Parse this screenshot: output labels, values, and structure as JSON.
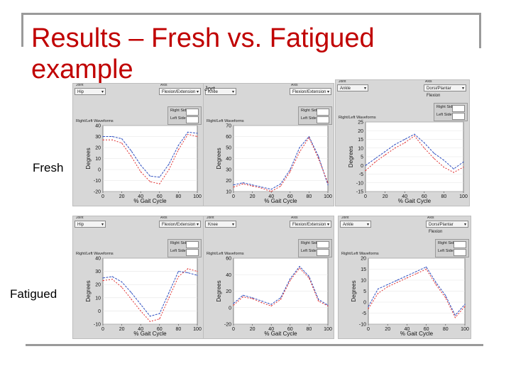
{
  "slide": {
    "title": "Results – Fresh vs. Fatigued example",
    "rows": [
      "Fresh",
      "Fatigued"
    ],
    "stray_label": "Jort"
  },
  "colors": {
    "title": "#c00000",
    "left_series": "#e03030",
    "right_series": "#3050c0",
    "panel_bg": "#d7d7d7",
    "plot_bg": "#ffffff"
  },
  "panels": [
    {
      "controls": [
        {
          "label": "Joint",
          "value": "Hip"
        },
        {
          "label": "Axis",
          "value": "Flexion/Extension"
        }
      ],
      "legend": [
        "Right Side",
        "Left Side"
      ],
      "plot_label": "Right/Left Waveforms",
      "xlabel": "% Gait Cycle",
      "ylabel": "Degrees",
      "xticks": [
        "0",
        "20",
        "40",
        "60",
        "80",
        "100"
      ],
      "yticks": [
        "40",
        "30",
        "20",
        "10",
        "0",
        "-10",
        "-20"
      ],
      "ylim": [
        -20,
        40
      ],
      "chart_data": {
        "type": "line",
        "x": [
          0,
          10,
          20,
          30,
          40,
          50,
          60,
          70,
          80,
          90,
          100
        ],
        "series": [
          {
            "name": "Right Side",
            "values": [
              30,
              30,
              28,
              17,
              4,
              -6,
              -7,
              5,
              22,
              34,
              33
            ]
          },
          {
            "name": "Left Side",
            "values": [
              27,
              27,
              24,
              12,
              -2,
              -11,
              -13,
              0,
              18,
              32,
              30
            ]
          }
        ]
      }
    },
    {
      "controls": [
        {
          "label": "",
          "value": "Knee"
        },
        {
          "label": "Axis",
          "value": "Flexion/Extension"
        }
      ],
      "legend": [
        "Right Side",
        "Left Side"
      ],
      "plot_label": "Right/Left Waveforms",
      "xlabel": "% Gait Cycle",
      "ylabel": "Degrees",
      "xticks": [
        "0",
        "20",
        "40",
        "60",
        "80",
        "100"
      ],
      "yticks": [
        "70",
        "60",
        "50",
        "40",
        "30",
        "20",
        "10"
      ],
      "ylim": [
        10,
        70
      ],
      "chart_data": {
        "type": "line",
        "x": [
          0,
          10,
          20,
          30,
          40,
          50,
          60,
          70,
          80,
          90,
          100
        ],
        "series": [
          {
            "name": "Right Side",
            "values": [
              16,
              18,
              16,
              14,
              12,
              17,
              30,
              50,
              60,
              42,
              16
            ]
          },
          {
            "name": "Left Side",
            "values": [
              14,
              17,
              15,
              13,
              10,
              15,
              28,
              46,
              59,
              40,
              18
            ]
          }
        ]
      }
    },
    {
      "controls": [
        {
          "label": "Joint",
          "value": "Ankle"
        },
        {
          "label": "Axis",
          "value": "Dorsi/Plantar Flexion"
        }
      ],
      "legend": [
        "Right Side",
        "Left Side"
      ],
      "plot_label": "Right/Left Waveforms",
      "xlabel": "% Gait Cycle",
      "ylabel": "Degrees",
      "xticks": [
        "0",
        "20",
        "40",
        "60",
        "80",
        "100"
      ],
      "yticks": [
        "25",
        "20",
        "15",
        "10",
        "5",
        "0",
        "-5",
        "-10",
        "-15"
      ],
      "ylim": [
        -15,
        25
      ],
      "chart_data": {
        "type": "line",
        "x": [
          0,
          10,
          20,
          30,
          40,
          50,
          60,
          70,
          80,
          90,
          100
        ],
        "series": [
          {
            "name": "Right Side",
            "values": [
              0,
              4,
              8,
              12,
              15,
              18,
              13,
              7,
              3,
              -2,
              2
            ]
          },
          {
            "name": "Left Side",
            "values": [
              -3,
              2,
              6,
              10,
              13,
              17,
              10,
              4,
              -1,
              -4,
              -1
            ]
          }
        ]
      }
    },
    {
      "controls": [
        {
          "label": "Joint",
          "value": "Hip"
        },
        {
          "label": "Axis",
          "value": "Flexion/Extension"
        }
      ],
      "legend": [
        "Right Side",
        "Left Side"
      ],
      "plot_label": "Right/Left Waveforms",
      "xlabel": "% Gait Cycle",
      "ylabel": "Degrees",
      "xticks": [
        "0",
        "20",
        "40",
        "60",
        "80",
        "100"
      ],
      "yticks": [
        "40",
        "30",
        "20",
        "10",
        "0",
        "-10"
      ],
      "ylim": [
        -10,
        40
      ],
      "chart_data": {
        "type": "line",
        "x": [
          0,
          10,
          20,
          30,
          40,
          50,
          60,
          70,
          80,
          90,
          100
        ],
        "series": [
          {
            "name": "Right Side",
            "values": [
              25,
              26,
              22,
              14,
              5,
              -4,
              -2,
              14,
              30,
              29,
              27
            ]
          },
          {
            "name": "Left Side",
            "values": [
              23,
              24,
              18,
              9,
              0,
              -8,
              -6,
              10,
              26,
              32,
              30
            ]
          }
        ]
      }
    },
    {
      "controls": [
        {
          "label": "Joint",
          "value": "Knee"
        },
        {
          "label": "Axis",
          "value": "Flexion/Extension"
        }
      ],
      "legend": [
        "Right Side",
        "Left Side"
      ],
      "plot_label": "Right/Left Waveforms",
      "xlabel": "% Gait Cycle",
      "ylabel": "Degrees",
      "xticks": [
        "0",
        "20",
        "40",
        "60",
        "80",
        "100"
      ],
      "yticks": [
        "60",
        "40",
        "20",
        "0",
        "-20"
      ],
      "ylim": [
        -20,
        60
      ],
      "chart_data": {
        "type": "line",
        "x": [
          0,
          10,
          20,
          30,
          40,
          50,
          60,
          70,
          80,
          90,
          100
        ],
        "series": [
          {
            "name": "Right Side",
            "values": [
              5,
              15,
              12,
              8,
              4,
              12,
              35,
              50,
              38,
              10,
              3
            ]
          },
          {
            "name": "Left Side",
            "values": [
              3,
              13,
              11,
              6,
              2,
              10,
              33,
              48,
              36,
              8,
              2
            ]
          }
        ]
      }
    },
    {
      "controls": [
        {
          "label": "Joint",
          "value": "Ankle"
        },
        {
          "label": "Axis",
          "value": "Dorsi/Plantar Flexion"
        }
      ],
      "legend": [
        "Right Side",
        "Left Side"
      ],
      "plot_label": "Right/Left Waveforms",
      "xlabel": "% Gait Cycle",
      "ylabel": "Degrees",
      "xticks": [
        "0",
        "20",
        "40",
        "60",
        "80",
        "100"
      ],
      "yticks": [
        "20",
        "15",
        "10",
        "5",
        "0",
        "-5",
        "-10"
      ],
      "ylim": [
        -10,
        20
      ],
      "chart_data": {
        "type": "line",
        "x": [
          0,
          10,
          20,
          30,
          40,
          50,
          60,
          70,
          80,
          90,
          100
        ],
        "series": [
          {
            "name": "Right Side",
            "values": [
              -2,
              6,
              8,
              10,
              12,
              14,
              16,
              9,
              3,
              -6,
              -1
            ]
          },
          {
            "name": "Left Side",
            "values": [
              -3,
              4,
              7,
              9,
              11,
              13,
              15,
              8,
              2,
              -7,
              -2
            ]
          }
        ]
      }
    }
  ]
}
